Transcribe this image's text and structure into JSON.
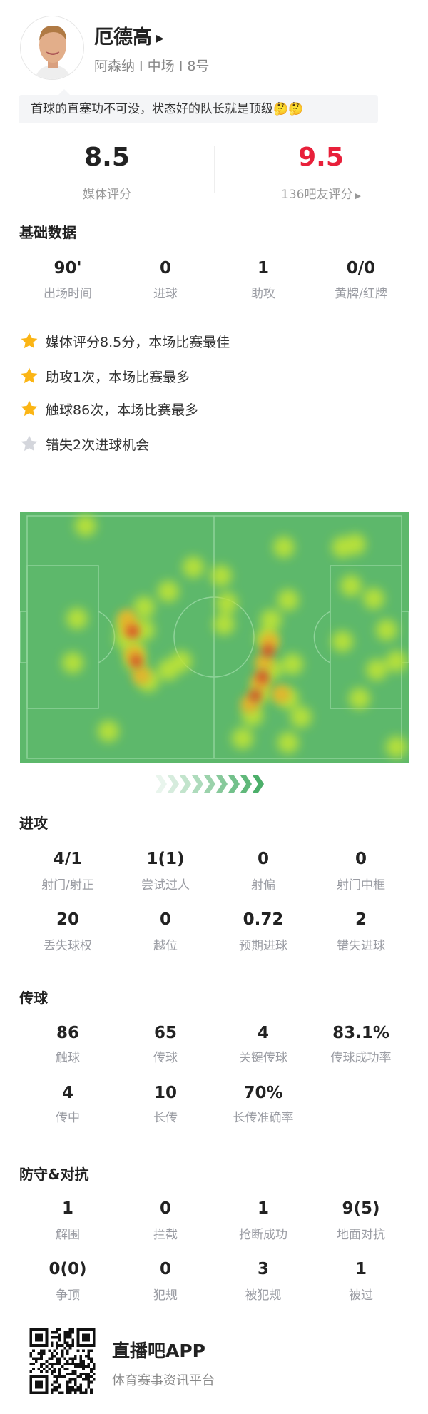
{
  "player": {
    "name": "厄德高",
    "subtitle": "阿森纳 I 中场 I 8号",
    "comment": "首球的直塞功不可没，状态好的队长就是顶级🤔🤔"
  },
  "ratings": {
    "media_score": "8.5",
    "media_label": "媒体评分",
    "fan_score": "9.5",
    "fan_label": "136吧友评分",
    "fan_color": "#e8203a"
  },
  "basic": {
    "title": "基础数据",
    "stats": [
      {
        "value": "90'",
        "label": "出场时间"
      },
      {
        "value": "0",
        "label": "进球"
      },
      {
        "value": "1",
        "label": "助攻"
      },
      {
        "value": "0/0",
        "label": "黄牌/红牌"
      }
    ],
    "highlights": [
      {
        "text": "媒体评分8.5分，本场比赛最佳",
        "icon": "star-gold"
      },
      {
        "text": "助攻1次，本场比赛最多",
        "icon": "star-gold"
      },
      {
        "text": "触球86次，本场比赛最多",
        "icon": "star-gold"
      },
      {
        "text": "错失2次进球机会",
        "icon": "star-gray"
      }
    ]
  },
  "attack": {
    "title": "进攻",
    "stats": [
      {
        "value": "4/1",
        "label": "射门/射正"
      },
      {
        "value": "1(1)",
        "label": "尝试过人"
      },
      {
        "value": "0",
        "label": "射偏"
      },
      {
        "value": "0",
        "label": "射门中框"
      },
      {
        "value": "20",
        "label": "丢失球权"
      },
      {
        "value": "0",
        "label": "越位"
      },
      {
        "value": "0.72",
        "label": "预期进球"
      },
      {
        "value": "2",
        "label": "错失进球"
      }
    ]
  },
  "passing": {
    "title": "传球",
    "stats": [
      {
        "value": "86",
        "label": "触球"
      },
      {
        "value": "65",
        "label": "传球"
      },
      {
        "value": "4",
        "label": "关键传球"
      },
      {
        "value": "83.1%",
        "label": "传球成功率"
      },
      {
        "value": "4",
        "label": "传中"
      },
      {
        "value": "10",
        "label": "长传"
      },
      {
        "value": "70%",
        "label": "长传准确率"
      }
    ]
  },
  "defense": {
    "title": "防守&对抗",
    "stats": [
      {
        "value": "1",
        "label": "解围"
      },
      {
        "value": "0",
        "label": "拦截"
      },
      {
        "value": "1",
        "label": "抢断成功"
      },
      {
        "value": "9(5)",
        "label": "地面对抗"
      },
      {
        "value": "0(0)",
        "label": "争顶"
      },
      {
        "value": "0",
        "label": "犯规"
      },
      {
        "value": "3",
        "label": "被犯规"
      },
      {
        "value": "1",
        "label": "被过"
      }
    ]
  },
  "footer": {
    "app_name": "直播吧APP",
    "tagline": "体育赛事资讯平台"
  },
  "colors": {
    "pitch": "#5db86b",
    "attack_arrow": "#4caf6a"
  }
}
